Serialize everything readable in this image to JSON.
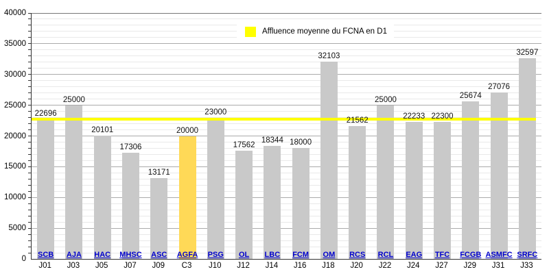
{
  "chart_data": {
    "type": "bar",
    "title": "",
    "xlabel": "",
    "ylabel": "",
    "ylim": [
      0,
      40000
    ],
    "ytick_step": 5000,
    "minor_grid_step": 1000,
    "grid": true,
    "legend": {
      "label": "Affluence moyenne du FCNA en D1",
      "swatch_color": "#FFFF00",
      "position": "top-center"
    },
    "categories_clubs": [
      "SCB",
      "AJA",
      "HAC",
      "MHSC",
      "ASC",
      "AGFA",
      "PSG",
      "OL",
      "LBC",
      "FCM",
      "OM",
      "RCS",
      "RCL",
      "EAG",
      "TFC",
      "FCGB",
      "ASMFC",
      "SRFC"
    ],
    "categories_days": [
      "J01",
      "J03",
      "J05",
      "J07",
      "J09",
      "C3",
      "J10",
      "J12",
      "J14",
      "J16",
      "J18",
      "J20",
      "J22",
      "J24",
      "J27",
      "J29",
      "J31",
      "J33"
    ],
    "values": [
      22696,
      25000,
      20101,
      17306,
      13171,
      20000,
      23000,
      17562,
      18344,
      18000,
      32103,
      21562,
      25000,
      22233,
      22300,
      25674,
      27076,
      32597
    ],
    "highlight_index": 5,
    "average_line_value": 22696,
    "colors": {
      "bar": "#C9C9C9",
      "highlight_bar": "#FFD957",
      "average_line": "#FFFF00",
      "club_label": "#0000CC",
      "day_label": "#000000",
      "major_grid": "#AAAAAA",
      "minor_grid": "#E9E9E9",
      "top_grid": "#777777",
      "axis": "#333333"
    }
  }
}
